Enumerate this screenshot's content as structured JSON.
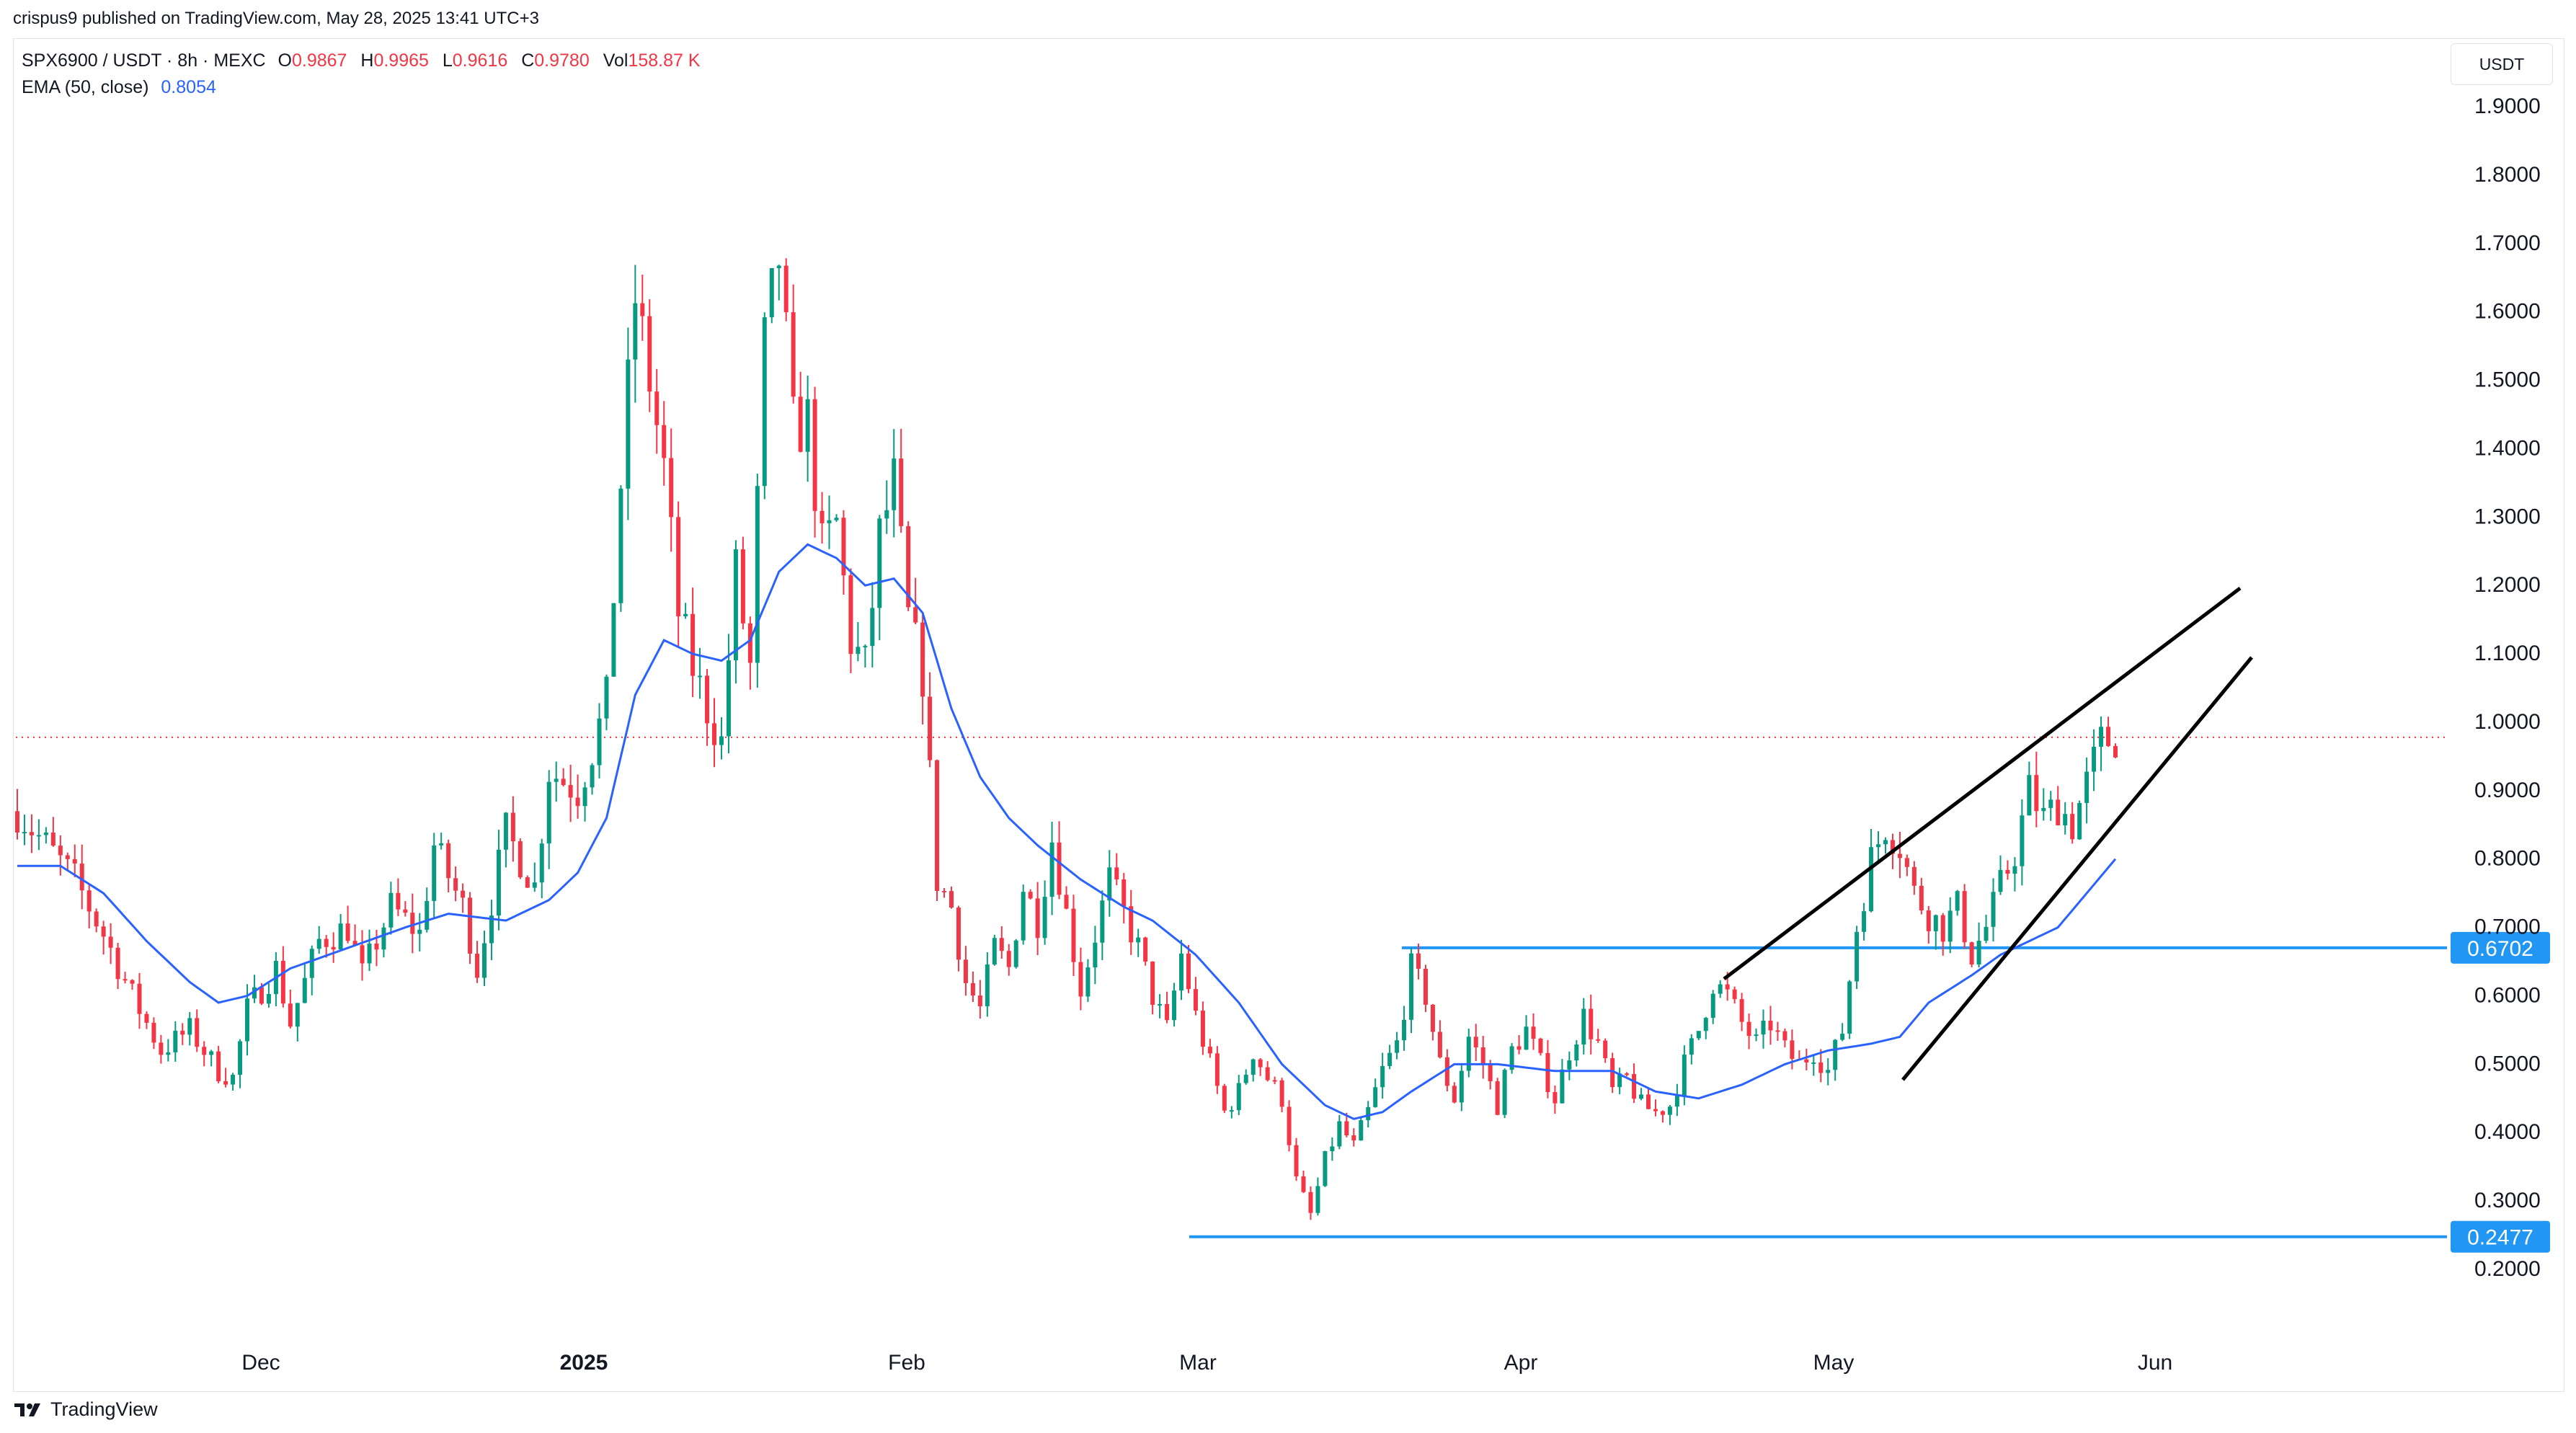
{
  "header": {
    "published": "crispus9 published on TradingView.com, May 28, 2025 13:41 UTC+3"
  },
  "legend": {
    "symbol": "SPX6900 / USDT · 8h · MEXC",
    "open_label": "O",
    "open": "0.9867",
    "high_label": "H",
    "high": "0.9965",
    "low_label": "L",
    "low": "0.9616",
    "close_label": "C",
    "close": "0.9780",
    "vol_label": "Vol",
    "vol": "158.87 K",
    "ema_label": "EMA (50, close)",
    "ema_value": "0.8054"
  },
  "price_axis": {
    "currency": "USDT",
    "ticks": [
      "1.9000",
      "1.8000",
      "1.7000",
      "1.6000",
      "1.5000",
      "1.4000",
      "1.3000",
      "1.2000",
      "1.1000",
      "1.0000",
      "0.9000",
      "0.8000",
      "0.7000",
      "0.6000",
      "0.5000",
      "0.4000",
      "0.3000",
      "0.2000"
    ]
  },
  "levels": [
    {
      "label": "0.6702",
      "value": 0.6702
    },
    {
      "label": "0.2477",
      "value": 0.2477
    }
  ],
  "footer": {
    "brand": "TradingView"
  },
  "colors": {
    "up": "#089981",
    "down": "#f23645",
    "ema": "#2962ff",
    "level": "#2196f3",
    "last_price": "#f23645",
    "trendline": "#000000"
  },
  "chart_data": {
    "type": "candlestick",
    "symbol": "SPX6900 / USDT",
    "interval": "8h",
    "exchange": "MEXC",
    "x_labels": [
      "Dec",
      "2025",
      "Feb",
      "Mar",
      "Apr",
      "May",
      "Jun"
    ],
    "ylim": [
      0.1,
      1.95
    ],
    "last_price": 0.978,
    "ema50_last": 0.8054,
    "series": [
      {
        "name": "EMA (50, close)",
        "type": "line",
        "points": [
          [
            0,
            0.79
          ],
          [
            6,
            0.79
          ],
          [
            12,
            0.75
          ],
          [
            18,
            0.68
          ],
          [
            24,
            0.62
          ],
          [
            28,
            0.59
          ],
          [
            32,
            0.6
          ],
          [
            38,
            0.64
          ],
          [
            46,
            0.67
          ],
          [
            54,
            0.7
          ],
          [
            60,
            0.72
          ],
          [
            68,
            0.71
          ],
          [
            74,
            0.74
          ],
          [
            78,
            0.78
          ],
          [
            82,
            0.86
          ],
          [
            86,
            1.04
          ],
          [
            90,
            1.12
          ],
          [
            94,
            1.1
          ],
          [
            98,
            1.09
          ],
          [
            102,
            1.12
          ],
          [
            106,
            1.22
          ],
          [
            110,
            1.26
          ],
          [
            114,
            1.24
          ],
          [
            118,
            1.2
          ],
          [
            122,
            1.21
          ],
          [
            126,
            1.16
          ],
          [
            130,
            1.02
          ],
          [
            134,
            0.92
          ],
          [
            138,
            0.86
          ],
          [
            142,
            0.82
          ],
          [
            148,
            0.77
          ],
          [
            154,
            0.73
          ],
          [
            158,
            0.71
          ],
          [
            164,
            0.66
          ],
          [
            170,
            0.59
          ],
          [
            176,
            0.5
          ],
          [
            182,
            0.44
          ],
          [
            186,
            0.42
          ],
          [
            190,
            0.43
          ],
          [
            194,
            0.46
          ],
          [
            200,
            0.5
          ],
          [
            206,
            0.5
          ],
          [
            214,
            0.49
          ],
          [
            222,
            0.49
          ],
          [
            228,
            0.46
          ],
          [
            234,
            0.45
          ],
          [
            240,
            0.47
          ],
          [
            246,
            0.5
          ],
          [
            252,
            0.52
          ],
          [
            258,
            0.53
          ],
          [
            262,
            0.54
          ],
          [
            266,
            0.59
          ],
          [
            272,
            0.63
          ],
          [
            276,
            0.66
          ],
          [
            280,
            0.68
          ],
          [
            284,
            0.7
          ],
          [
            288,
            0.75
          ],
          [
            292,
            0.8
          ]
        ]
      },
      {
        "name": "Price",
        "type": "candles",
        "points": [
          [
            0,
            0.87
          ],
          [
            4,
            0.82
          ],
          [
            8,
            0.77
          ],
          [
            12,
            0.69
          ],
          [
            16,
            0.6
          ],
          [
            20,
            0.52
          ],
          [
            24,
            0.55
          ],
          [
            28,
            0.49
          ],
          [
            30,
            0.48
          ],
          [
            32,
            0.58
          ],
          [
            36,
            0.64
          ],
          [
            38,
            0.56
          ],
          [
            42,
            0.68
          ],
          [
            46,
            0.7
          ],
          [
            48,
            0.63
          ],
          [
            52,
            0.73
          ],
          [
            56,
            0.69
          ],
          [
            58,
            0.82
          ],
          [
            62,
            0.73
          ],
          [
            64,
            0.64
          ],
          [
            68,
            0.84
          ],
          [
            72,
            0.76
          ],
          [
            74,
            0.93
          ],
          [
            78,
            0.9
          ],
          [
            80,
            0.96
          ],
          [
            82,
            1.03
          ],
          [
            84,
            1.35
          ],
          [
            86,
            1.62
          ],
          [
            88,
            1.5
          ],
          [
            90,
            1.37
          ],
          [
            92,
            1.16
          ],
          [
            94,
            1.08
          ],
          [
            96,
            1.02
          ],
          [
            98,
            0.97
          ],
          [
            100,
            1.22
          ],
          [
            102,
            1.08
          ],
          [
            104,
            1.55
          ],
          [
            106,
            1.68
          ],
          [
            108,
            1.43
          ],
          [
            110,
            1.44
          ],
          [
            112,
            1.25
          ],
          [
            114,
            1.29
          ],
          [
            116,
            1.12
          ],
          [
            118,
            1.08
          ],
          [
            120,
            1.27
          ],
          [
            122,
            1.35
          ],
          [
            124,
            1.15
          ],
          [
            126,
            1.07
          ],
          [
            128,
            0.77
          ],
          [
            130,
            0.73
          ],
          [
            132,
            0.62
          ],
          [
            134,
            0.58
          ],
          [
            136,
            0.67
          ],
          [
            138,
            0.64
          ],
          [
            140,
            0.76
          ],
          [
            142,
            0.71
          ],
          [
            144,
            0.83
          ],
          [
            146,
            0.72
          ],
          [
            148,
            0.61
          ],
          [
            150,
            0.69
          ],
          [
            152,
            0.77
          ],
          [
            154,
            0.72
          ],
          [
            156,
            0.67
          ],
          [
            158,
            0.6
          ],
          [
            160,
            0.55
          ],
          [
            162,
            0.66
          ],
          [
            164,
            0.57
          ],
          [
            166,
            0.5
          ],
          [
            168,
            0.43
          ],
          [
            170,
            0.46
          ],
          [
            172,
            0.52
          ],
          [
            174,
            0.48
          ],
          [
            176,
            0.45
          ],
          [
            178,
            0.33
          ],
          [
            180,
            0.28
          ],
          [
            182,
            0.36
          ],
          [
            184,
            0.41
          ],
          [
            186,
            0.38
          ],
          [
            188,
            0.43
          ],
          [
            190,
            0.49
          ],
          [
            192,
            0.53
          ],
          [
            194,
            0.64
          ],
          [
            196,
            0.6
          ],
          [
            198,
            0.5
          ],
          [
            200,
            0.45
          ],
          [
            202,
            0.54
          ],
          [
            204,
            0.5
          ],
          [
            206,
            0.44
          ],
          [
            208,
            0.52
          ],
          [
            210,
            0.55
          ],
          [
            212,
            0.5
          ],
          [
            214,
            0.45
          ],
          [
            216,
            0.52
          ],
          [
            218,
            0.57
          ],
          [
            220,
            0.53
          ],
          [
            222,
            0.46
          ],
          [
            224,
            0.48
          ],
          [
            226,
            0.44
          ],
          [
            228,
            0.43
          ],
          [
            230,
            0.44
          ],
          [
            232,
            0.5
          ],
          [
            234,
            0.55
          ],
          [
            236,
            0.62
          ],
          [
            238,
            0.6
          ],
          [
            240,
            0.56
          ],
          [
            242,
            0.53
          ],
          [
            244,
            0.56
          ],
          [
            246,
            0.52
          ],
          [
            248,
            0.5
          ],
          [
            250,
            0.52
          ],
          [
            252,
            0.49
          ],
          [
            254,
            0.55
          ],
          [
            256,
            0.7
          ],
          [
            258,
            0.8
          ],
          [
            260,
            0.85
          ],
          [
            262,
            0.82
          ],
          [
            264,
            0.75
          ],
          [
            266,
            0.72
          ],
          [
            268,
            0.7
          ],
          [
            270,
            0.73
          ],
          [
            272,
            0.66
          ],
          [
            274,
            0.7
          ],
          [
            276,
            0.76
          ],
          [
            278,
            0.81
          ],
          [
            280,
            0.9
          ],
          [
            282,
            0.86
          ],
          [
            284,
            0.88
          ],
          [
            286,
            0.85
          ],
          [
            288,
            0.91
          ],
          [
            290,
            0.97
          ],
          [
            292,
            0.978
          ]
        ]
      }
    ],
    "horizontal_levels": [
      0.6702,
      0.2477
    ],
    "annotations": [
      "Rising wedge drawn with two converging black trendlines from early May to June"
    ]
  }
}
